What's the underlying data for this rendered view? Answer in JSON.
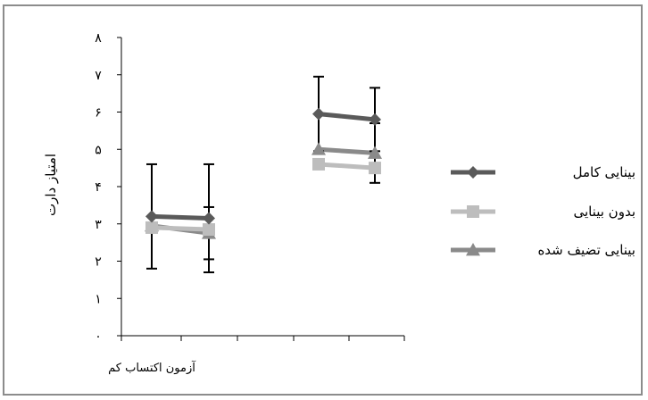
{
  "chart_data": {
    "type": "line",
    "ylabel": "امتیاز دارت",
    "ylim": [
      0,
      8
    ],
    "yticks": [
      "۰",
      "۱",
      "۲",
      "۳",
      "۴",
      "۵",
      "۶",
      "۷",
      "۸"
    ],
    "x_category_label": "آزمون اکتساب کم",
    "legend_position": "right",
    "groups": [
      {
        "points": 2
      },
      {
        "points": 2
      }
    ],
    "series": [
      {
        "name": "بینایی کامل",
        "marker": "diamond",
        "color": "#5a5a5a",
        "groups": [
          {
            "values": [
              3.2,
              3.15
            ],
            "error": [
              1.4,
              1.45
            ]
          },
          {
            "values": [
              5.95,
              5.8
            ],
            "error": [
              1.0,
              0.85
            ]
          }
        ]
      },
      {
        "name": "بدون بینایی",
        "marker": "square",
        "color": "#bdbdbd",
        "groups": [
          {
            "values": [
              2.9,
              2.85
            ],
            "error": [
              0,
              0
            ]
          },
          {
            "values": [
              4.6,
              4.5
            ],
            "error": [
              0,
              0
            ]
          }
        ]
      },
      {
        "name": "بینایی تضیف شده",
        "marker": "triangle",
        "color": "#8a8a8a",
        "groups": [
          {
            "values": [
              2.95,
              2.75
            ],
            "error": [
              0,
              0.7
            ]
          },
          {
            "values": [
              5.0,
              4.9
            ],
            "error": [
              0,
              0.8
            ]
          }
        ]
      }
    ]
  }
}
